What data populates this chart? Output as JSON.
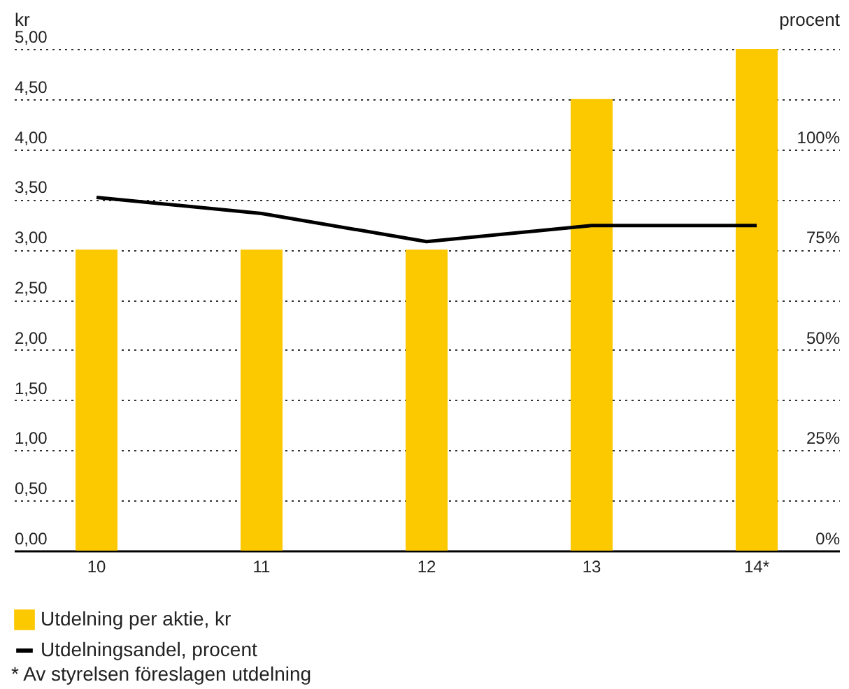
{
  "chart_data": {
    "type": "bar",
    "ylabel": "kr",
    "y2label": "procent",
    "categories": [
      "10",
      "11",
      "12",
      "13",
      "14*"
    ],
    "series": [
      {
        "name": "Utdelning per aktie, kr",
        "color": "#fcc800",
        "values": [
          3.0,
          3.0,
          3.0,
          4.5,
          5.0
        ]
      },
      {
        "name": "Utdelningsandel, procent",
        "type": "line",
        "axis": "y2",
        "color": "#000000",
        "values": [
          88,
          84,
          77,
          81,
          81
        ]
      }
    ],
    "ylim": [
      0,
      5
    ],
    "yticks": [
      {
        "value": 0,
        "label": "0,00"
      },
      {
        "value": 0.5,
        "label": "0,50"
      },
      {
        "value": 1,
        "label": "1,00"
      },
      {
        "value": 1.5,
        "label": "1,50"
      },
      {
        "value": 2,
        "label": "2,00"
      },
      {
        "value": 2.5,
        "label": "2,50"
      },
      {
        "value": 3,
        "label": "3,00"
      },
      {
        "value": 3.5,
        "label": "3,50"
      },
      {
        "value": 4,
        "label": "4,00"
      },
      {
        "value": 4.5,
        "label": "4,50"
      },
      {
        "value": 5,
        "label": "5,00"
      }
    ],
    "y2lim": [
      0,
      125
    ],
    "y2ticks": [
      {
        "value": 0,
        "label": "0%"
      },
      {
        "value": 25,
        "label": "25%"
      },
      {
        "value": 50,
        "label": "50%"
      },
      {
        "value": 75,
        "label": "75%"
      },
      {
        "value": 100,
        "label": "100%"
      }
    ],
    "grid": "y",
    "legend": "bottom",
    "annotations": [
      "* Av styrelsen föreslagen utdelning"
    ]
  }
}
